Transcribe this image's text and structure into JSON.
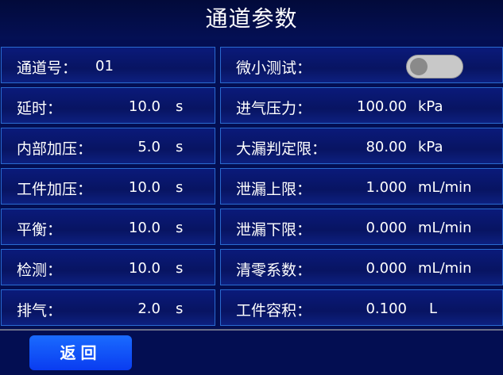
{
  "title": "通道参数",
  "left": [
    {
      "label": "通道号：",
      "value": "01",
      "unit": ""
    },
    {
      "label": "延时：",
      "value": "10.0",
      "unit": "s"
    },
    {
      "label": "内部加压：",
      "value": "5.0",
      "unit": "s"
    },
    {
      "label": "工件加压：",
      "value": "10.0",
      "unit": "s"
    },
    {
      "label": "平衡：",
      "value": "10.0",
      "unit": "s"
    },
    {
      "label": "检测：",
      "value": "10.0",
      "unit": "s"
    },
    {
      "label": "排气：",
      "value": "2.0",
      "unit": "s"
    }
  ],
  "right": [
    {
      "label": "微小测试：",
      "toggle": false
    },
    {
      "label": "进气压力：",
      "value": "100.00",
      "unit": "kPa"
    },
    {
      "label": "大漏判定限：",
      "value": "80.00",
      "unit": "kPa"
    },
    {
      "label": "泄漏上限：",
      "value": "1.000",
      "unit": "mL/min"
    },
    {
      "label": "泄漏下限：",
      "value": "0.000",
      "unit": "mL/min"
    },
    {
      "label": "清零系数：",
      "value": "0.000",
      "unit": "mL/min"
    },
    {
      "label": "工件容积：",
      "value": "0.100",
      "unit": "L"
    }
  ],
  "back_label": "返回"
}
